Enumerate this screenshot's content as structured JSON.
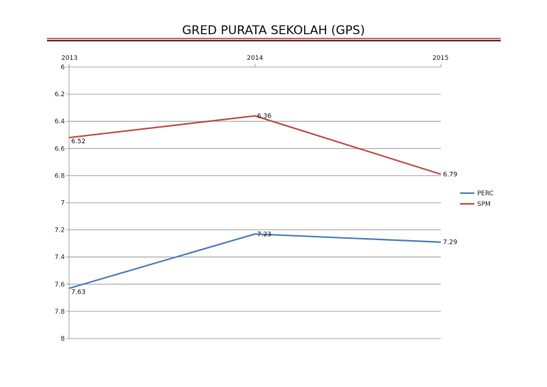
{
  "chart_data": {
    "type": "line",
    "title": "GRED PURATA SEKOLAH (GPS)",
    "categories": [
      "2013",
      "2014",
      "2015"
    ],
    "y_ticks": [
      "6",
      "6.2",
      "6.4",
      "6.6",
      "6.8",
      "7",
      "7.2",
      "7.4",
      "7.6",
      "7.8",
      "8"
    ],
    "ylim": [
      6,
      8
    ],
    "y_inverted": true,
    "x_axis_position": "top",
    "grid": true,
    "legend_position": "right",
    "series": [
      {
        "name": "PERC",
        "values": [
          7.63,
          7.23,
          7.29
        ],
        "labels": [
          "7.63",
          "7.23",
          "7.29"
        ],
        "color": "#4f81bd"
      },
      {
        "name": "SPM",
        "values": [
          6.52,
          6.36,
          6.79
        ],
        "labels": [
          "6.52",
          "6.36",
          "6.79"
        ],
        "color": "#c0504d"
      }
    ],
    "header_rule_color": "#7f1f1f"
  }
}
